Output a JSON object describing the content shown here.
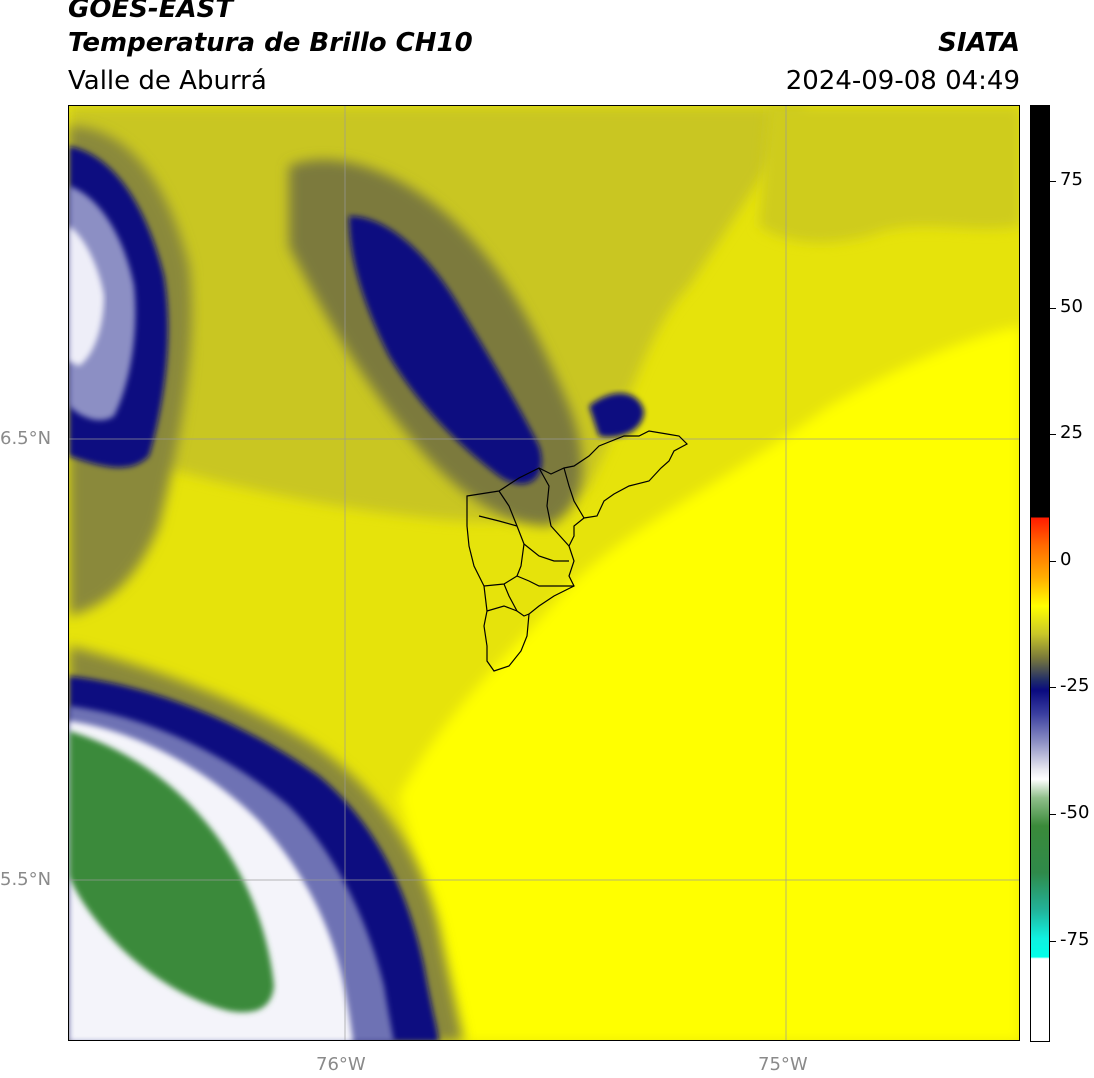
{
  "header": {
    "title_line1": "GOES-EAST",
    "title_line2": "Temperatura de Brillo CH10",
    "subtitle": "Valle de Aburrá",
    "organization": "SIATA",
    "datetime": "2024-09-08 04:49"
  },
  "map": {
    "lat_labels": [
      "6.5°N",
      "5.5°N"
    ],
    "lon_labels": [
      "76°W",
      "75°W"
    ],
    "colors": {
      "base_yellow": "#e6e30b",
      "bright_yellow": "#ffff00",
      "olive": "#c9c620",
      "dark_olive": "#7b7a3c",
      "navy": "#0a0a80",
      "lavender": "#8c8fc4",
      "white": "#ffffff",
      "green": "#3a8a3a",
      "boundary": "#000000"
    }
  },
  "colorbar": {
    "ticks": [
      "75",
      "50",
      "25",
      "0",
      "-25",
      "-50",
      "-75"
    ],
    "range": [
      -95,
      90
    ]
  }
}
